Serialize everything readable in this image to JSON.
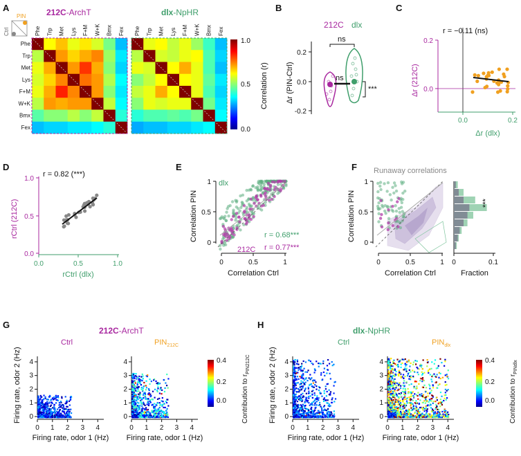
{
  "panel_letters": [
    "A",
    "B",
    "C",
    "D",
    "E",
    "F",
    "G",
    "H"
  ],
  "colors": {
    "purple": "#a8279f",
    "green": "#3f9e6b",
    "orange": "#f0a020",
    "gray": "#666666",
    "black": "#111111"
  },
  "panel_a": {
    "title_212c_bold": "212C",
    "title_212c_rest": "-ArchT",
    "title_dlx_bold": "dlx",
    "title_dlx_rest": "-NpHR",
    "pin_label": "PIN",
    "ctrl_label": "Ctrl",
    "odors": [
      "Phe",
      "Trp",
      "Met",
      "Lys",
      "F+M",
      "W+K",
      "Bmx",
      "Fex"
    ],
    "colorbar_label": "Correlation (r)",
    "colorbar_ticks": [
      "1.0",
      "0.5",
      "0.0"
    ],
    "matrix_212c": [
      [
        1.0,
        0.62,
        0.68,
        0.6,
        0.64,
        0.58,
        0.48,
        0.3
      ],
      [
        0.55,
        1.0,
        0.72,
        0.66,
        0.7,
        0.74,
        0.52,
        0.34
      ],
      [
        0.6,
        0.7,
        1.0,
        0.72,
        0.82,
        0.7,
        0.5,
        0.32
      ],
      [
        0.58,
        0.66,
        0.74,
        1.0,
        0.76,
        0.72,
        0.54,
        0.36
      ],
      [
        0.6,
        0.7,
        0.84,
        0.74,
        1.0,
        0.72,
        0.5,
        0.34
      ],
      [
        0.55,
        0.72,
        0.7,
        0.72,
        0.72,
        1.0,
        0.56,
        0.36
      ],
      [
        0.45,
        0.5,
        0.5,
        0.55,
        0.5,
        0.56,
        1.0,
        0.4
      ],
      [
        0.3,
        0.32,
        0.32,
        0.34,
        0.34,
        0.36,
        0.4,
        1.0
      ]
    ],
    "matrix_dlx": [
      [
        1.0,
        0.6,
        0.62,
        0.56,
        0.6,
        0.52,
        0.42,
        0.3
      ],
      [
        0.55,
        1.0,
        0.58,
        0.56,
        0.6,
        0.62,
        0.44,
        0.32
      ],
      [
        0.6,
        0.58,
        1.0,
        0.62,
        0.7,
        0.6,
        0.44,
        0.3
      ],
      [
        0.5,
        0.56,
        0.62,
        1.0,
        0.62,
        0.6,
        0.46,
        0.34
      ],
      [
        0.56,
        0.6,
        0.7,
        0.62,
        1.0,
        0.6,
        0.44,
        0.32
      ],
      [
        0.5,
        0.6,
        0.58,
        0.6,
        0.6,
        1.0,
        0.48,
        0.34
      ],
      [
        0.4,
        0.44,
        0.44,
        0.46,
        0.44,
        0.48,
        1.0,
        0.36
      ],
      [
        0.28,
        0.3,
        0.3,
        0.32,
        0.32,
        0.34,
        0.36,
        1.0
      ]
    ]
  },
  "panel_b": {
    "label_212c": "212C",
    "label_dlx": "dlx",
    "ylabel": "Δr (PIN-Ctrl)",
    "yticks": [
      "0.2",
      "0.0",
      "-0.2"
    ],
    "ns1": "ns",
    "ns2": "ns",
    "stars": "***"
  },
  "panel_c": {
    "r_text": "r = −0.11 (ns)",
    "ylabel": "Δr (212C)",
    "xlabel": "Δr (dlx)",
    "xticks": [
      "0.0",
      "0.2"
    ],
    "yticks": [
      "0.2",
      "0.0"
    ]
  },
  "panel_d": {
    "r_text": "r = 0.82 (***)",
    "ylabel": "rCtrl (212C)",
    "xlabel": "rCtrl (dlx)",
    "xticks": [
      "0.0",
      "0.5",
      "1.0"
    ],
    "yticks": [
      "1.0",
      "0.5",
      "0.0"
    ]
  },
  "panel_e": {
    "dlx_label": "dlx",
    "label_212c": "212C",
    "r_dlx": "r = 0.68***",
    "r_212c": "r = 0.77***",
    "xlabel": "Correlation Ctrl",
    "ylabel": "Correlation PIN",
    "xticks": [
      "0",
      "0.5",
      "1"
    ],
    "yticks": [
      "1",
      "0.5",
      "0"
    ]
  },
  "panel_f": {
    "title": "Runaway correlations",
    "xlabel": "Correlation Ctrl",
    "ylabel": "Correlation PIN",
    "xticks": [
      "0",
      "0.5",
      "1"
    ],
    "yticks": [
      "1",
      "0.5",
      "0"
    ],
    "hist_xlabel": "Fraction",
    "hist_xticks": [
      "0",
      "0.1"
    ],
    "stars": "***"
  },
  "panel_g": {
    "title_bold": "212C",
    "title_rest": "-ArchT",
    "ctrl_title": "Ctrl",
    "pin_title": "PIN",
    "pin_sub": "212C",
    "xlabel": "Firing rate, odor 1 (Hz)",
    "ylabel": "Firing rate, odor 2 (Hz)",
    "xticks": [
      "0",
      "1",
      "2",
      "3",
      "4"
    ],
    "yticks": [
      "4",
      "3",
      "2",
      "1",
      "0"
    ],
    "cbar_label": "Contribution to r",
    "cbar_sub": "PIN212C",
    "cbar_ticks": [
      "0.4",
      "0.2",
      "0.0"
    ]
  },
  "panel_h": {
    "title_bold": "dlx",
    "title_rest": "-NpHR",
    "ctrl_title": "Ctrl",
    "pin_title": "PIN",
    "pin_sub": "dlx",
    "xlabel": "Firing rate, odor 1 (Hz)",
    "ylabel": "Firing rate, odor 2 (Hz)",
    "xticks": [
      "0",
      "1",
      "2",
      "3",
      "4"
    ],
    "yticks": [
      "4",
      "3",
      "2",
      "1",
      "0"
    ],
    "cbar_label": "Contribution to r",
    "cbar_sub": "PINdlx",
    "cbar_ticks": [
      "0.4",
      "0.2",
      "0.0"
    ]
  }
}
